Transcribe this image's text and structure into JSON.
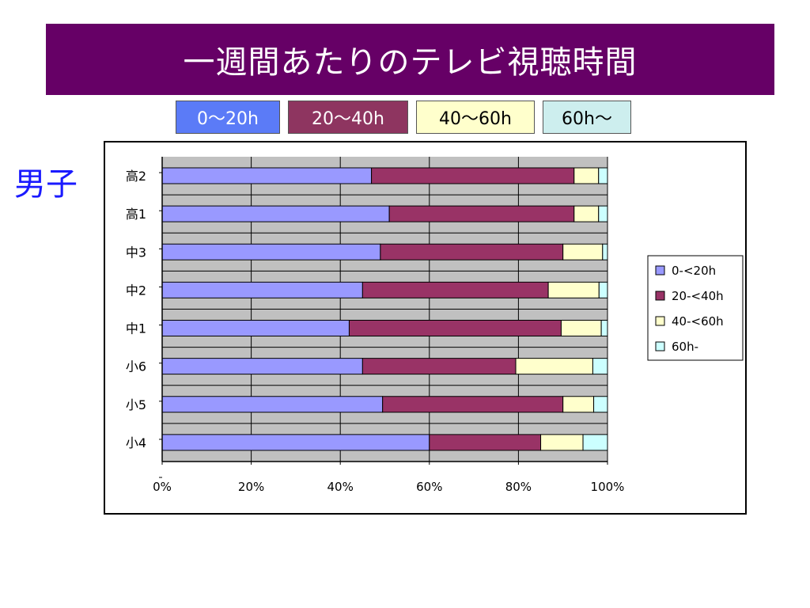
{
  "title": "一週間あたりのテレビ視聴時間",
  "subject": "男子",
  "key_boxes": [
    {
      "label": "0～20h",
      "bg": "#5b7bf7",
      "fg": "#ffffff"
    },
    {
      "label": "20～40h",
      "bg": "#8e3560",
      "fg": "#ffffff"
    },
    {
      "label": "40～60h",
      "bg": "#ffffcc",
      "fg": "#000000"
    },
    {
      "label": "60h～",
      "bg": "#cdeeee",
      "fg": "#000000"
    }
  ],
  "chart_data": {
    "type": "bar",
    "orientation": "horizontal",
    "stacked": "percent",
    "categories": [
      "高2",
      "高1",
      "中3",
      "中2",
      "中1",
      "小6",
      "小5",
      "小4"
    ],
    "series": [
      {
        "name": "0-<20h",
        "color": "#9999ff",
        "values": [
          47,
          51,
          49,
          45,
          42,
          45,
          49.5,
          60
        ]
      },
      {
        "name": "20-<40h",
        "color": "#993366",
        "values": [
          45.5,
          41.5,
          41,
          41.7,
          47.6,
          34.4,
          40.5,
          25
        ]
      },
      {
        "name": "40-<60h",
        "color": "#ffffcc",
        "values": [
          5.5,
          5.5,
          8.9,
          11.4,
          9,
          17.3,
          6.9,
          9.5
        ]
      },
      {
        "name": "60h-",
        "color": "#ccffff",
        "values": [
          2,
          2,
          1.1,
          1.9,
          1.4,
          3.3,
          3.1,
          5.5
        ]
      }
    ],
    "x_ticks": [
      "0%",
      "20%",
      "40%",
      "60%",
      "80%",
      "100%"
    ],
    "xlim": [
      0,
      100
    ],
    "plot_background": "#c0c0c0",
    "grid": true,
    "legend_position": "right"
  }
}
